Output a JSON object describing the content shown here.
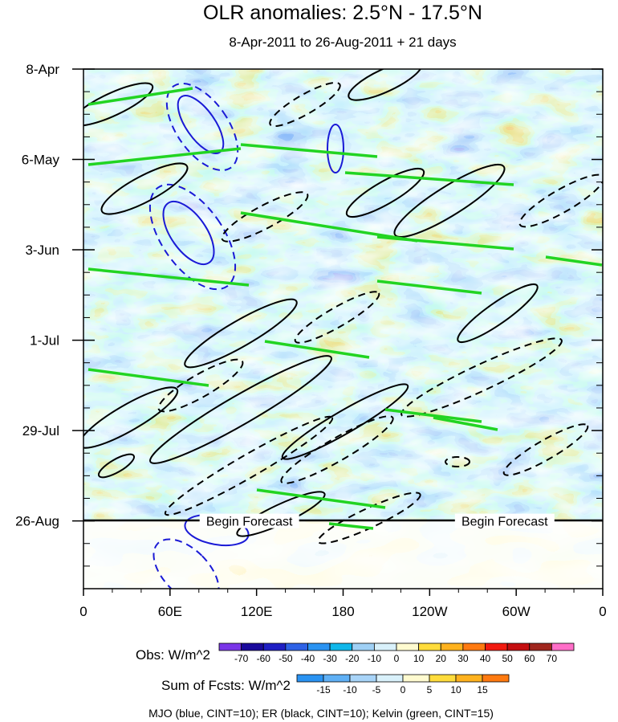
{
  "chart_data": {
    "type": "heatmap",
    "title": "OLR anomalies: 2.5°N - 17.5°N",
    "subtitle": "8-Apr-2011 to 26-Aug-2011 + 21 days",
    "x_ticks": [
      {
        "label": "0",
        "lon": 0
      },
      {
        "label": "60E",
        "lon": 60
      },
      {
        "label": "120E",
        "lon": 120
      },
      {
        "label": "180",
        "lon": 180
      },
      {
        "label": "120W",
        "lon": 240
      },
      {
        "label": "60W",
        "lon": 300
      },
      {
        "label": "0",
        "lon": 360
      }
    ],
    "xlim": [
      0,
      360
    ],
    "y_ticks": [
      {
        "label": "8-Apr",
        "day": 0
      },
      {
        "label": "6-May",
        "day": 28
      },
      {
        "label": "3-Jun",
        "day": 56
      },
      {
        "label": "1-Jul",
        "day": 84
      },
      {
        "label": "29-Jul",
        "day": 112
      },
      {
        "label": "26-Aug",
        "day": 140
      }
    ],
    "ylim_days": [
      0,
      161
    ],
    "forecast_start_day": 140,
    "forecast_labels": [
      "Begin Forecast",
      "Begin Forecast"
    ],
    "obs_colorbar": {
      "label": "Obs: W/m^2",
      "levels": [
        -70,
        -60,
        -50,
        -40,
        -30,
        -20,
        -10,
        0,
        10,
        20,
        30,
        40,
        50,
        60,
        70
      ],
      "colors": [
        "#7a35e8",
        "#1a0a9c",
        "#1f1fc4",
        "#2e62e6",
        "#2a93f2",
        "#10b7ea",
        "#9fd0f5",
        "#d9f1fb",
        "#fffbd0",
        "#ffdc3c",
        "#ffb21e",
        "#ff7a10",
        "#f21a10",
        "#c40e10",
        "#a0261e",
        "#ff6ec8"
      ]
    },
    "fcst_colorbar": {
      "label": "Sum of Fcsts: W/m^2",
      "levels": [
        -15,
        -10,
        -5,
        0,
        5,
        10,
        15
      ],
      "colors": [
        "#2a93f2",
        "#5fb0f5",
        "#a8d4f8",
        "#d9f1fb",
        "#fffbd0",
        "#ffdc3c",
        "#ffb21e",
        "#ff7a10"
      ]
    },
    "contour_note": "MJO (blue, CINT=10); ER (black, CINT=10); Kelvin (green, CINT=15)",
    "series": [
      {
        "name": "MJO",
        "color": "#1a1ad6"
      },
      {
        "name": "ER",
        "color": "#000000"
      },
      {
        "name": "Kelvin",
        "color": "#22d422"
      }
    ]
  }
}
